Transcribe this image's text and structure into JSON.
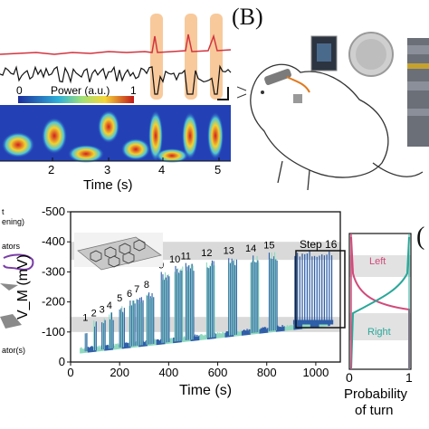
{
  "panel_labels": {
    "b": "(B)",
    "c": "("
  },
  "panel_a": {
    "colorbar_label": "Power (a.u.)",
    "colorbar_min": "0",
    "colorbar_max": "1",
    "x_label": "Time (s)",
    "x_ticks": [
      "2",
      "3",
      "4",
      "5"
    ],
    "highlight_color": "#f7c08a"
  },
  "panel_left": {
    "labels": [
      "t",
      "ening)",
      "ators",
      "ator(s)"
    ]
  },
  "chart_data": {
    "type": "line",
    "title": "",
    "xlabel": "Time (s)",
    "ylabel": "V_M (mV)",
    "xlim": [
      0,
      1100
    ],
    "ylim": [
      0,
      500
    ],
    "x_ticks": [
      "0",
      "200",
      "400",
      "600",
      "800",
      "1000"
    ],
    "y_ticks": [
      "0",
      "100",
      "200",
      "300",
      "400",
      "500"
    ],
    "y_tick_signs": [
      "",
      "-",
      "-",
      "-",
      "-",
      "-"
    ],
    "steps": [
      {
        "label": "1",
        "t": 60,
        "peak": 125
      },
      {
        "label": "2",
        "t": 95,
        "peak": 140
      },
      {
        "label": "3",
        "t": 128,
        "peak": 152
      },
      {
        "label": "4",
        "t": 158,
        "peak": 165
      },
      {
        "label": "5",
        "t": 200,
        "peak": 190
      },
      {
        "label": "6",
        "t": 240,
        "peak": 205
      },
      {
        "label": "7",
        "t": 270,
        "peak": 220
      },
      {
        "label": "8",
        "t": 310,
        "peak": 235
      },
      {
        "label": "9",
        "t": 370,
        "peak": 300
      },
      {
        "label": "10",
        "t": 425,
        "peak": 320
      },
      {
        "label": "11",
        "t": 470,
        "peak": 330
      },
      {
        "label": "12",
        "t": 555,
        "peak": 340
      },
      {
        "label": "13",
        "t": 645,
        "peak": 348
      },
      {
        "label": "14",
        "t": 735,
        "peak": 356
      },
      {
        "label": "15",
        "t": 810,
        "peak": 366
      }
    ],
    "inset_label": "Step 16",
    "series_colors": [
      "#2f5fa8",
      "#8fd9c0"
    ],
    "band_color": "#d9d9d9"
  },
  "side_panel": {
    "label_left": "Left",
    "label_right": "Right",
    "x_tick_0": "0",
    "x_tick_1": "1",
    "x_label_line1": "Probability",
    "x_label_line2": "of turn",
    "curve_colors": [
      "#d24a7a",
      "#2aa89a"
    ]
  }
}
